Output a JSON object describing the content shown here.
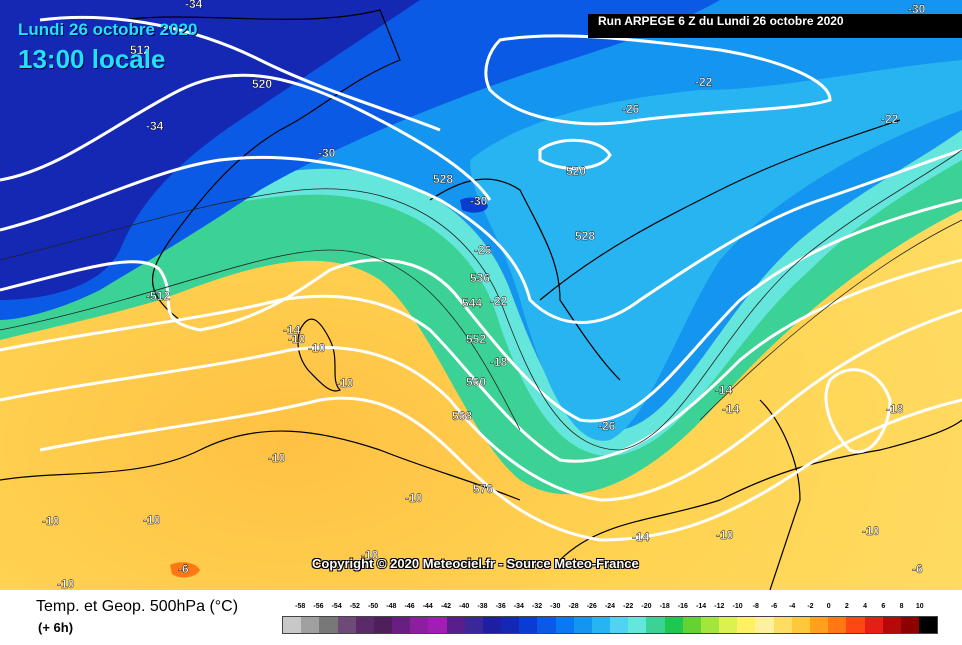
{
  "header": {
    "date": "Lundi 26 octobre 2020",
    "time": "13:00 locale",
    "run": "Run ARPEGE 6 Z du Lundi 26 octobre 2020"
  },
  "copyright": "Copyright © 2020 Meteociel.fr - Source Meteo-France",
  "legend": {
    "title": "Temp. et Geop. 500hPa (°C)",
    "subtitle": "(+ 6h)",
    "ticks": [
      "-58",
      "-56",
      "-54",
      "-52",
      "-50",
      "-48",
      "-46",
      "-44",
      "-42",
      "-40",
      "-38",
      "-36",
      "-34",
      "-32",
      "-30",
      "-28",
      "-26",
      "-24",
      "-22",
      "-20",
      "-18",
      "-16",
      "-14",
      "-12",
      "-10",
      "-8",
      "-6",
      "-4",
      "-2",
      "0",
      "2",
      "4",
      "6",
      "8",
      "10"
    ],
    "colors": [
      "#c8c8c8",
      "#a0a0a0",
      "#787878",
      "#6e4a78",
      "#5a2a6a",
      "#501e5a",
      "#6a1e82",
      "#8c1ea0",
      "#a01eb4",
      "#5a1e8c",
      "#3a2896",
      "#1e1ea0",
      "#1428b4",
      "#0a3cd2",
      "#0a5ae6",
      "#0a78f0",
      "#1496f0",
      "#28b4f0",
      "#50d2f0",
      "#64e6dc",
      "#3cd296",
      "#1ec850",
      "#64d232",
      "#a0e63c",
      "#dcf050",
      "#fff064",
      "#fff0a0",
      "#ffdc64",
      "#ffc83c",
      "#ffa01e",
      "#ff7814",
      "#ff4614",
      "#e61e14",
      "#b40a0a",
      "#8c0000",
      "#000000"
    ]
  },
  "map": {
    "temperature_labels": [
      "-34",
      "-34",
      "-30",
      "-30",
      "-30",
      "-26",
      "-26",
      "-26",
      "-22",
      "-22",
      "-22",
      "-18",
      "-18",
      "-14",
      "-14",
      "-14",
      "-14",
      "-10",
      "-10",
      "-10",
      "-10",
      "-10",
      "-10",
      "-10",
      "-10",
      "-10",
      "-10",
      "-10",
      "-6",
      "-6"
    ],
    "geopotential_labels": [
      "512",
      "520",
      "520",
      "528",
      "528",
      "536",
      "544",
      "552",
      "560",
      "568",
      "576",
      "-512"
    ]
  }
}
